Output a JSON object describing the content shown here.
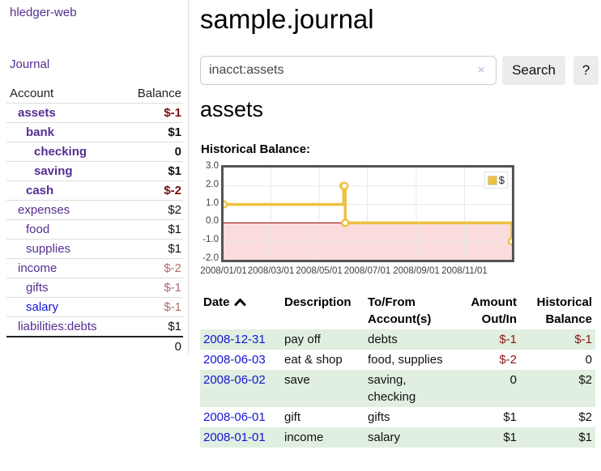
{
  "brand": "hledger-web",
  "nav": {
    "journal": "Journal"
  },
  "sidebar": {
    "col_account": "Account",
    "col_balance": "Balance",
    "accounts": [
      {
        "name": "assets",
        "depth": 1,
        "bold": true,
        "balance": "$-1",
        "tone": "neg",
        "blue": false
      },
      {
        "name": "bank",
        "depth": 2,
        "bold": true,
        "balance": "$1",
        "tone": "plain",
        "blue": false
      },
      {
        "name": "checking",
        "depth": 3,
        "bold": true,
        "balance": "0",
        "tone": "plain",
        "blue": false
      },
      {
        "name": "saving",
        "depth": 3,
        "bold": true,
        "balance": "$1",
        "tone": "plain",
        "blue": false
      },
      {
        "name": "cash",
        "depth": 2,
        "bold": true,
        "balance": "$-2",
        "tone": "neg",
        "blue": false
      },
      {
        "name": "expenses",
        "depth": 1,
        "bold": false,
        "balance": "$2",
        "tone": "plain",
        "blue": false
      },
      {
        "name": "food",
        "depth": 2,
        "bold": false,
        "balance": "$1",
        "tone": "plain",
        "blue": false
      },
      {
        "name": "supplies",
        "depth": 2,
        "bold": false,
        "balance": "$1",
        "tone": "plain",
        "blue": false
      },
      {
        "name": "income",
        "depth": 1,
        "bold": false,
        "balance": "$-2",
        "tone": "muted",
        "blue": false
      },
      {
        "name": "gifts",
        "depth": 2,
        "bold": false,
        "balance": "$-1",
        "tone": "muted",
        "blue": false
      },
      {
        "name": "salary",
        "depth": 2,
        "bold": false,
        "balance": "$-1",
        "tone": "muted",
        "blue": true
      },
      {
        "name": "liabilities:debts",
        "depth": 1,
        "bold": false,
        "balance": "$1",
        "tone": "plain",
        "blue": false
      }
    ],
    "total": "0"
  },
  "header": {
    "title": "sample.journal"
  },
  "search": {
    "value": "inacct:assets",
    "clear_icon": "×",
    "button": "Search",
    "help": "?"
  },
  "account_page": {
    "heading": "assets",
    "chart_label": "Historical Balance:"
  },
  "chart_data": {
    "type": "line",
    "step": true,
    "title": "Historical Balance",
    "legend": "$",
    "legend_position": "top-right",
    "grid": true,
    "ylim": [
      -2,
      3
    ],
    "xlim_days": [
      0,
      365
    ],
    "series": [
      {
        "name": "$",
        "color": "#edc240",
        "points": [
          {
            "date": "2008-01-01",
            "day": 0,
            "value": 1
          },
          {
            "date": "2008-06-01",
            "day": 152,
            "value": 2
          },
          {
            "date": "2008-06-02",
            "day": 153,
            "value": 2
          },
          {
            "date": "2008-06-03",
            "day": 154,
            "value": 0
          },
          {
            "date": "2008-12-31",
            "day": 365,
            "value": -1
          }
        ]
      }
    ],
    "yticks": [
      {
        "label": "3.0",
        "value": 3
      },
      {
        "label": "2.0",
        "value": 2
      },
      {
        "label": "1.0",
        "value": 1
      },
      {
        "label": "0.0",
        "value": 0
      },
      {
        "label": "-1.0",
        "value": -1
      },
      {
        "label": "-2.0",
        "value": -2
      }
    ],
    "xticks": [
      {
        "label": "2008/01/01",
        "day": 0
      },
      {
        "label": "2008/03/01",
        "day": 60
      },
      {
        "label": "2008/05/01",
        "day": 121
      },
      {
        "label": "2008/07/01",
        "day": 182
      },
      {
        "label": "2008/09/01",
        "day": 244
      },
      {
        "label": "2008/11/01",
        "day": 305
      }
    ],
    "negative_fill": "#fbdcdc",
    "zero_line_color": "#8b0000",
    "grid_color": "#e8e8e8"
  },
  "register": {
    "columns": [
      {
        "label": "Date",
        "align": "left",
        "sorted": true
      },
      {
        "label": "Description",
        "align": "left",
        "sorted": false
      },
      {
        "label": "To/From\nAccount(s)",
        "align": "left",
        "sorted": false
      },
      {
        "label": "Amount\nOut/In",
        "align": "right",
        "sorted": false
      },
      {
        "label": "Historical\nBalance",
        "align": "right",
        "sorted": false
      }
    ],
    "rows": [
      {
        "date": "2008-12-31",
        "description": "pay off",
        "accounts": "debts",
        "amount": "$-1",
        "balance": "$-1"
      },
      {
        "date": "2008-06-03",
        "description": "eat & shop",
        "accounts": "food, supplies",
        "amount": "$-2",
        "balance": "0"
      },
      {
        "date": "2008-06-02",
        "description": "save",
        "accounts": "saving, checking",
        "amount": "0",
        "balance": "$2"
      },
      {
        "date": "2008-06-01",
        "description": "gift",
        "accounts": "gifts",
        "amount": "$1",
        "balance": "$2"
      },
      {
        "date": "2008-01-01",
        "description": "income",
        "accounts": "salary",
        "amount": "$1",
        "balance": "$1"
      }
    ]
  },
  "colors": {
    "link_purple": "#542e91",
    "link_blue": "#1414d6",
    "negative_strong": "#7b0c12",
    "negative": "#8b1515",
    "negative_muted": "#b16b6f",
    "row_stripe_green": "#e0efe0",
    "chart_gold": "#edc240",
    "chart_negative_fill": "#fbdcdc",
    "chart_border": "#545454"
  }
}
